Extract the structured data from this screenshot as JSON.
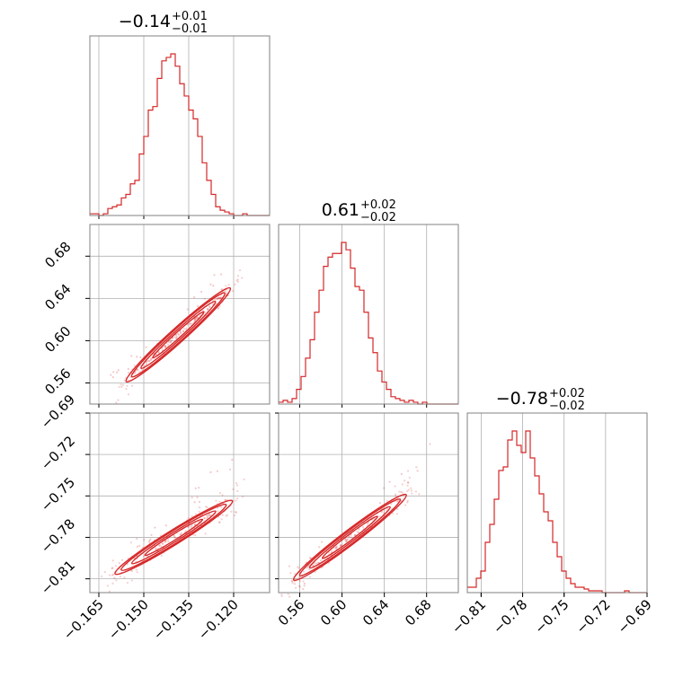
{
  "chart_data": {
    "type": "corner",
    "colors": {
      "series": "#d62728",
      "grid": "#b0b0b0",
      "frame": "#808080"
    },
    "grid": true,
    "parameters": [
      {
        "title_median": "−0.14",
        "title_plus": "+0.01",
        "title_minus": "−0.01",
        "range": [
          -0.168,
          -0.108
        ],
        "ticks": [
          -0.165,
          -0.15,
          -0.135,
          -0.12
        ],
        "tick_labels": [
          "−0.165",
          "−0.150",
          "−0.135",
          "−0.120"
        ]
      },
      {
        "title_median": "0.61",
        "title_plus": "+0.02",
        "title_minus": "−0.02",
        "range": [
          0.54,
          0.71
        ],
        "ticks": [
          0.56,
          0.6,
          0.64,
          0.68
        ],
        "tick_labels": [
          "0.56",
          "0.60",
          "0.64",
          "0.68"
        ]
      },
      {
        "title_median": "−0.78",
        "title_plus": "+0.02",
        "title_minus": "−0.02",
        "range": [
          -0.82,
          -0.69
        ],
        "ticks": [
          -0.81,
          -0.78,
          -0.75,
          -0.72,
          -0.69
        ],
        "tick_labels": [
          "−0.81",
          "−0.78",
          "−0.75",
          "−0.72",
          "−0.69"
        ]
      }
    ],
    "histograms": [
      {
        "param": 0,
        "bin_counts": [
          1,
          1,
          0,
          1,
          4,
          5,
          6,
          10,
          12,
          18,
          20,
          35,
          45,
          60,
          62,
          78,
          88,
          90,
          92,
          85,
          75,
          68,
          60,
          55,
          45,
          30,
          20,
          12,
          5,
          3,
          2,
          1,
          0,
          0,
          1,
          0,
          0,
          0,
          0,
          0
        ]
      },
      {
        "param": 1,
        "bin_counts": [
          1,
          2,
          1,
          3,
          8,
          15,
          25,
          35,
          50,
          62,
          75,
          80,
          82,
          82,
          88,
          84,
          74,
          64,
          62,
          50,
          36,
          28,
          18,
          12,
          8,
          4,
          3,
          2,
          1,
          2,
          1,
          0,
          1,
          0,
          0,
          0,
          0,
          0,
          0,
          0
        ]
      },
      {
        "param": 2,
        "bin_counts": [
          3,
          3,
          8,
          12,
          28,
          38,
          52,
          68,
          70,
          85,
          90,
          82,
          78,
          90,
          75,
          65,
          55,
          45,
          40,
          28,
          20,
          12,
          8,
          5,
          3,
          3,
          2,
          1,
          1,
          1,
          0,
          0,
          0,
          0,
          0,
          1,
          0,
          0,
          0,
          0
        ]
      }
    ],
    "contours": [
      {
        "x_param": 0,
        "y_param": 1,
        "center": [
          -0.1385,
          0.6055
        ],
        "slope": 2.55,
        "spread": 0.003,
        "half_length": 0.0155,
        "trail_start": [
          -0.1625,
          0.5585
        ],
        "trail_end": [
          -0.115,
          0.6835
        ]
      },
      {
        "x_param": 0,
        "y_param": 2,
        "center": [
          -0.14,
          -0.78
        ],
        "slope": 1.35,
        "spread": 0.004,
        "half_length": 0.0175,
        "trail_start": [
          -0.161,
          -0.813
        ],
        "trail_end": [
          -0.117,
          -0.715
        ]
      },
      {
        "x_param": 1,
        "y_param": 2,
        "center": [
          0.6075,
          -0.78
        ],
        "slope": 0.58,
        "spread": 0.0035,
        "half_length": 0.0475,
        "trail_start": [
          0.56,
          -0.816
        ],
        "trail_end": [
          0.69,
          -0.715
        ]
      }
    ]
  }
}
